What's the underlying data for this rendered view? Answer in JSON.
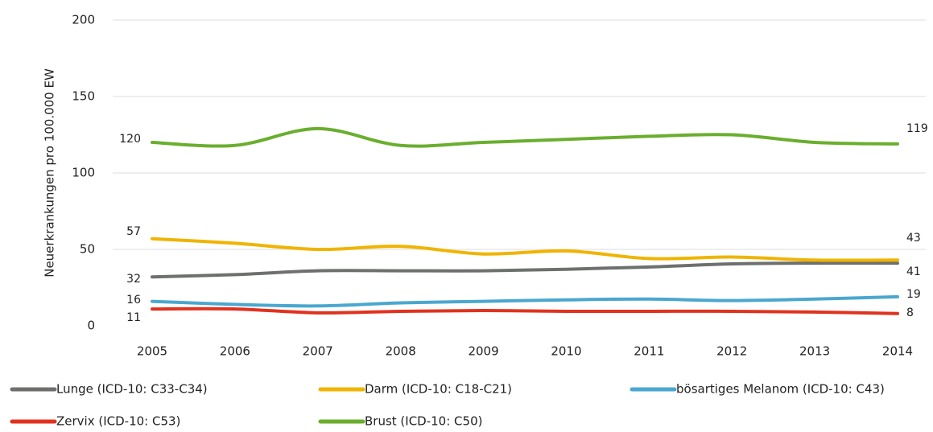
{
  "chart_data": {
    "type": "line",
    "y_label": "Neuerkrankungen pro 100.000 EW",
    "categories": [
      "2005",
      "2006",
      "2007",
      "2008",
      "2009",
      "2010",
      "2011",
      "2012",
      "2013",
      "2014"
    ],
    "series": [
      {
        "name": "Lunge (ICD-10: C33-C34)",
        "color": "#6d706d",
        "values": [
          32,
          33.5,
          36,
          36,
          36,
          37,
          38.5,
          40.5,
          41,
          41
        ]
      },
      {
        "name": "Darm (ICD-10: C18-C21)",
        "color": "#f0b400",
        "values": [
          57,
          54,
          50,
          52,
          47,
          49,
          44,
          45,
          43,
          43
        ]
      },
      {
        "name": "bösartiges Melanom (ICD-10: C43)",
        "color": "#4aa7cf",
        "values": [
          16,
          14,
          13,
          15,
          16,
          17,
          17.5,
          16.5,
          17.5,
          19
        ]
      },
      {
        "name": "Zervix (ICD-10: C53)",
        "color": "#e0321e",
        "values": [
          11,
          11,
          8.5,
          9.5,
          10,
          9.5,
          9.5,
          9.5,
          9,
          8
        ]
      },
      {
        "name": "Brust (ICD-10: C50)",
        "color": "#6aae2e",
        "values": [
          120,
          118,
          129,
          118,
          120,
          122,
          124,
          125,
          120,
          119
        ]
      }
    ],
    "ylim": [
      0,
      200
    ],
    "yticks": [
      0,
      50,
      100,
      150,
      200
    ],
    "grid": true,
    "smooth": true,
    "legend": "bottom"
  }
}
